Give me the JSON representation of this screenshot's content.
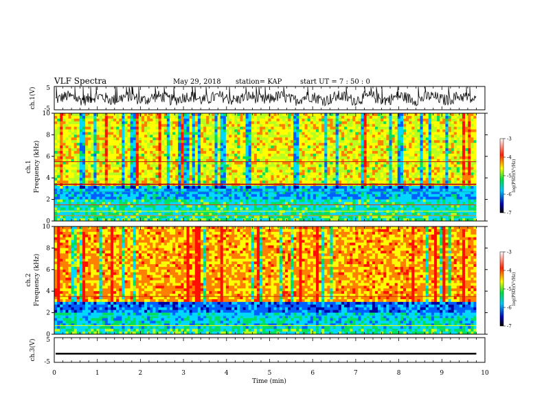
{
  "header": {
    "title": "VLF Spectra",
    "date": "May 29, 2018",
    "station": "station= KAP",
    "start_ut": "start  UT =   7 : 50 : 0"
  },
  "chart_data": [
    {
      "type": "line",
      "ylabel": "ch.1(V)",
      "ylim": [
        -5,
        5
      ],
      "yticks": [
        "5",
        "-5"
      ],
      "series": [
        {
          "description": "noisy waveform oscillating roughly between -3 and 3 V over 0–9.8 min"
        }
      ]
    },
    {
      "type": "heatmap",
      "ylabel_top": "ch.1",
      "ylabel": "Frequency (kHz)",
      "ylim": [
        0,
        10
      ],
      "yticks": [
        "0",
        "2",
        "4",
        "6",
        "8",
        "10"
      ],
      "xlim": [
        0,
        10
      ],
      "data_end_min": 9.8,
      "colorbar": {
        "label": "log(PSD)(V²/Hz)",
        "range": [
          -7,
          -3
        ],
        "ticks": [
          "-3",
          "-4",
          "-5",
          "-6",
          "-7"
        ]
      },
      "description": "red/yellow high power above ~3.3 kHz with vertical spikes; green/cyan band 2–3 kHz; horizontal lines near 0.5, 1.5, 2.7, 3.4, 5.5 kHz"
    },
    {
      "type": "heatmap",
      "ylabel_top": "ch.2",
      "ylabel": "Frequency (kHz)",
      "ylim": [
        0,
        10
      ],
      "yticks": [
        "0",
        "2",
        "4",
        "6",
        "8",
        "10"
      ],
      "xlim": [
        0,
        10
      ],
      "data_end_min": 9.8,
      "colorbar": {
        "label": "log(PSD)(V²/Hz)",
        "range": [
          -7,
          -3
        ],
        "ticks": [
          "-3",
          "-4",
          "-5",
          "-6",
          "-7"
        ]
      },
      "description": "predominantly red above ~3 kHz, blue/cyan band 2–3 kHz, green below 2 kHz"
    },
    {
      "type": "line",
      "ylabel": "ch.3(V)",
      "ylim": [
        -5,
        5
      ],
      "yticks": [
        "5",
        "-5"
      ],
      "series": [
        {
          "description": "flat near -1.5 V",
          "level": -1.5
        }
      ]
    }
  ],
  "xaxis": {
    "label": "Time  (min)",
    "ticks": [
      "0",
      "1",
      "2",
      "3",
      "4",
      "5",
      "6",
      "7",
      "8",
      "9",
      "10"
    ],
    "range": [
      0,
      10
    ]
  }
}
